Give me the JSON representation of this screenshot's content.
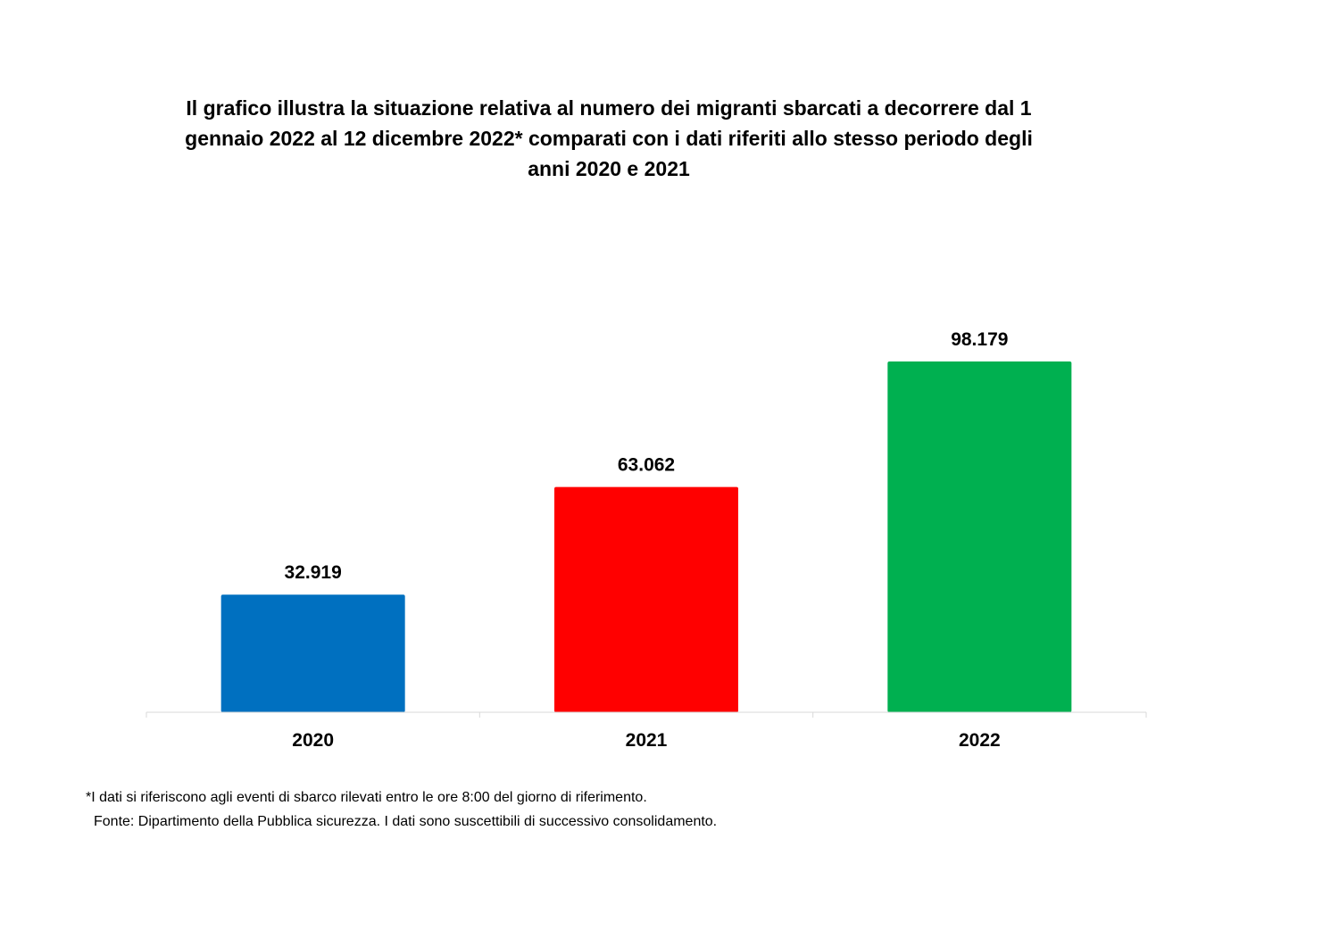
{
  "chart_data": {
    "type": "bar",
    "title_lines": [
      "Il grafico illustra la situazione relativa al numero dei migranti sbarcati a decorrere dal 1",
      "gennaio 2022 al 12 dicembre 2022* comparati con i dati riferiti allo stesso periodo degli",
      "anni 2020 e 2021"
    ],
    "categories": [
      "2020",
      "2021",
      "2022"
    ],
    "values": [
      32919,
      63062,
      98179
    ],
    "data_labels": [
      "32.919",
      "63.062",
      "98.179"
    ],
    "colors": [
      "#0070C0",
      "#FF0000",
      "#00B050"
    ],
    "xlabel": "",
    "ylabel": "",
    "ylim": [
      0,
      98179
    ],
    "grid": false,
    "legend": "none"
  },
  "footnotes": {
    "note": "*I dati si riferiscono agli eventi di sbarco rilevati entro le ore 8:00 del giorno di riferimento.",
    "source": "Fonte: Dipartimento della Pubblica sicurezza. I dati sono suscettibili di successivo consolidamento."
  }
}
